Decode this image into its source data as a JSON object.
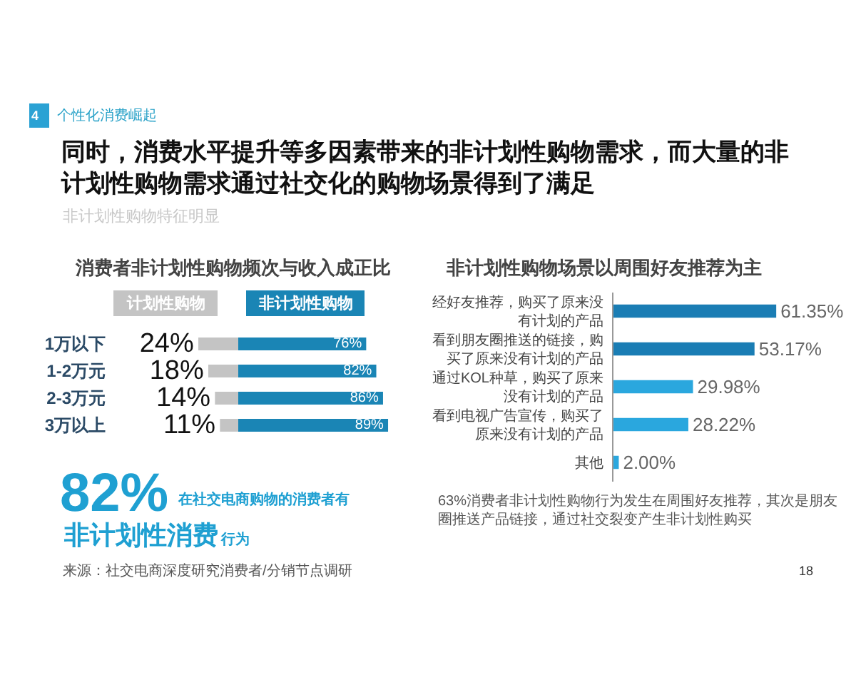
{
  "chart_data": [
    {
      "type": "bar",
      "orientation": "horizontal",
      "title": "消费者非计划性购物频次与收入成正比",
      "categories": [
        "1万以下",
        "1-2万元",
        "2-3万元",
        "3万以上"
      ],
      "series": [
        {
          "name": "计划性购物",
          "color": "#c4c4c4",
          "values": [
            24,
            18,
            14,
            11
          ],
          "value_labels": [
            "24%",
            "18%",
            "14%",
            "11%"
          ]
        }
      ],
      "xlim": [
        24,
        0
      ],
      "tick_labels": "y",
      "legend": "top",
      "annotations": [
        "4",
        "个性化消费崛起",
        "同时，消费水平提升等多因素带来的非计划性购物需求，而大量的非计划性购物需求通过社交化的购物场景得到了满足",
        "非计划性购物特征明显",
        "82%",
        "在社交电商购物的消费者有",
        "非计划性消费",
        "行为",
        "来源：社交电商深度研究消费者/分销节点调研",
        "18"
      ]
    },
    {
      "type": "bar",
      "orientation": "horizontal",
      "categories": [
        "1万以下",
        "1-2万元",
        "2-3万元",
        "3万以上"
      ],
      "series": [
        {
          "name": "非计划性购物",
          "color": "#1a85b5",
          "values": [
            76,
            82,
            86,
            89
          ],
          "value_labels": [
            "76%",
            "82%",
            "86%",
            "89%"
          ]
        }
      ],
      "tick_labels": false,
      "legend": "top"
    },
    {
      "type": "bar",
      "orientation": "horizontal",
      "title": "非计划性购物场景以周围好友推荐为主",
      "categories": [
        "经好友推荐，购买了原来没有计划的产品",
        "看到朋友圈推送的链接，购买了原来没有计划的产品",
        "通过KOL种草，购买了原来没有计划的产品",
        "看到电视广告宣传，购买了原来没有计划的产品",
        "其他"
      ],
      "values": [
        61.35,
        53.17,
        29.98,
        28.22,
        2.0
      ],
      "colors": [
        "#1a7db4",
        "#1a7db4",
        "#2aa7de",
        "#2aa7de",
        "#2aa7de"
      ],
      "value_labels": [
        "61.35%",
        "53.17%",
        "29.98%",
        "28.22%",
        "2.00%"
      ],
      "tick_labels": "y",
      "annotations": [
        "63%消费者非计划性购物行为发生在周围好友推荐，其次是朋友圈推送产品链接，通过社交裂变产生非计划性购买"
      ]
    }
  ]
}
